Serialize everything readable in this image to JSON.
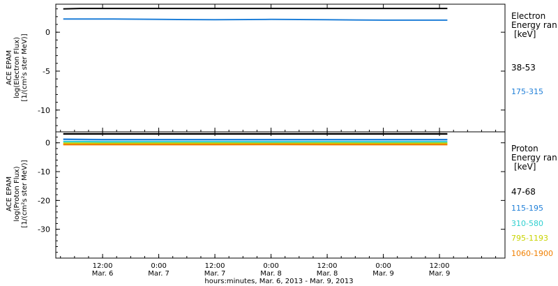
{
  "chart_data": [
    {
      "type": "line",
      "title": "",
      "ylabel_lines": [
        "ACE EPAM",
        "log(Electron Flux)",
        "[1/(cm²s ster MeV)]"
      ],
      "ylim": [
        -12.8,
        3.6
      ],
      "yticks": [
        0,
        -5,
        -10
      ],
      "legend": {
        "heading": [
          "Electron",
          "Energy ran",
          "[keV]"
        ],
        "placement": "right"
      },
      "series": [
        {
          "name": "38-53",
          "color": "#000000",
          "x": [
            0.15,
            0.3,
            0.6,
            1.0,
            1.5,
            2.0,
            2.5,
            3.0,
            3.57
          ],
          "values": [
            3.0,
            3.05,
            3.05,
            3.05,
            3.05,
            3.05,
            3.05,
            3.05,
            3.05
          ]
        },
        {
          "name": "175-315",
          "color": "#1f7fd8",
          "x": [
            0.15,
            0.3,
            0.6,
            1.0,
            1.5,
            2.0,
            2.5,
            3.0,
            3.57
          ],
          "values": [
            1.7,
            1.7,
            1.7,
            1.65,
            1.6,
            1.65,
            1.6,
            1.55,
            1.55
          ]
        }
      ]
    },
    {
      "type": "line",
      "title": "",
      "ylabel_lines": [
        "ACE EPAM",
        "log(Proton Flux)",
        "[1/(cm²s ster MeV)]"
      ],
      "ylim": [
        -40,
        3.8
      ],
      "yticks": [
        0,
        -10,
        -20,
        -30
      ],
      "legend": {
        "heading": [
          "Proton",
          "Energy ran",
          "[keV]"
        ],
        "placement": "right"
      },
      "xaxis": {
        "tick_labels": [
          [
            "12:00",
            "Mar. 6"
          ],
          [
            "0:00",
            "Mar. 7"
          ],
          [
            "12:00",
            "Mar. 7"
          ],
          [
            "0:00",
            "Mar. 8"
          ],
          [
            "12:00",
            "Mar. 8"
          ],
          [
            "0:00",
            "Mar. 9"
          ],
          [
            "12:00",
            "Mar. 9"
          ]
        ],
        "tick_values": [
          0.5,
          1.0,
          1.5,
          2.0,
          2.5,
          3.0,
          3.5
        ],
        "xlim": [
          0.0833,
          4.0833
        ],
        "xlabel": "hours:minutes, Mar.  6, 2013 - Mar.  9, 2013"
      },
      "series": [
        {
          "name": "47-68",
          "color": "#000000",
          "x": [
            0.15,
            0.5,
            1.0,
            1.5,
            2.0,
            2.5,
            3.0,
            3.57
          ],
          "values": [
            3.1,
            3.1,
            3.1,
            3.1,
            3.1,
            3.1,
            3.1,
            3.1
          ]
        },
        {
          "name": "115-195",
          "color": "#1f7fd8",
          "x": [
            0.15,
            0.5,
            1.0,
            1.5,
            2.0,
            2.5,
            3.0,
            3.57
          ],
          "values": [
            1.2,
            1.1,
            1.1,
            1.1,
            1.1,
            1.1,
            1.1,
            1.1
          ]
        },
        {
          "name": "310-580",
          "color": "#2ecfcf",
          "x": [
            0.15,
            0.5,
            1.0,
            1.5,
            2.0,
            2.5,
            3.0,
            3.57
          ],
          "values": [
            0.4,
            0.35,
            0.35,
            0.35,
            0.35,
            0.35,
            0.35,
            0.35
          ]
        },
        {
          "name": "795-1193",
          "color": "#c8d400",
          "x": [
            0.15,
            0.5,
            1.0,
            1.5,
            2.0,
            2.5,
            3.0,
            3.57
          ],
          "values": [
            -0.2,
            -0.25,
            -0.2,
            -0.2,
            -0.25,
            -0.2,
            -0.25,
            -0.2
          ]
        },
        {
          "name": "1060-1900",
          "color": "#f07f00",
          "x": [
            0.15,
            0.5,
            1.0,
            1.5,
            2.0,
            2.5,
            3.0,
            3.57
          ],
          "values": [
            -0.6,
            -0.6,
            -0.6,
            -0.6,
            -0.55,
            -0.6,
            -0.6,
            -0.6
          ]
        }
      ]
    }
  ]
}
